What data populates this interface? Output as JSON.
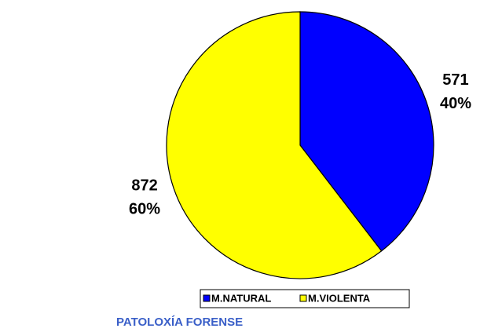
{
  "chart_data": {
    "type": "pie",
    "categories": [
      "M.NATURAL",
      "M.VIOLENTA"
    ],
    "values": [
      571,
      872
    ],
    "percent_labels": [
      "40%",
      "60%"
    ],
    "colors": [
      "#0000ff",
      "#ffff00"
    ],
    "annotation": "PATOLOXÍA FORENSE"
  }
}
